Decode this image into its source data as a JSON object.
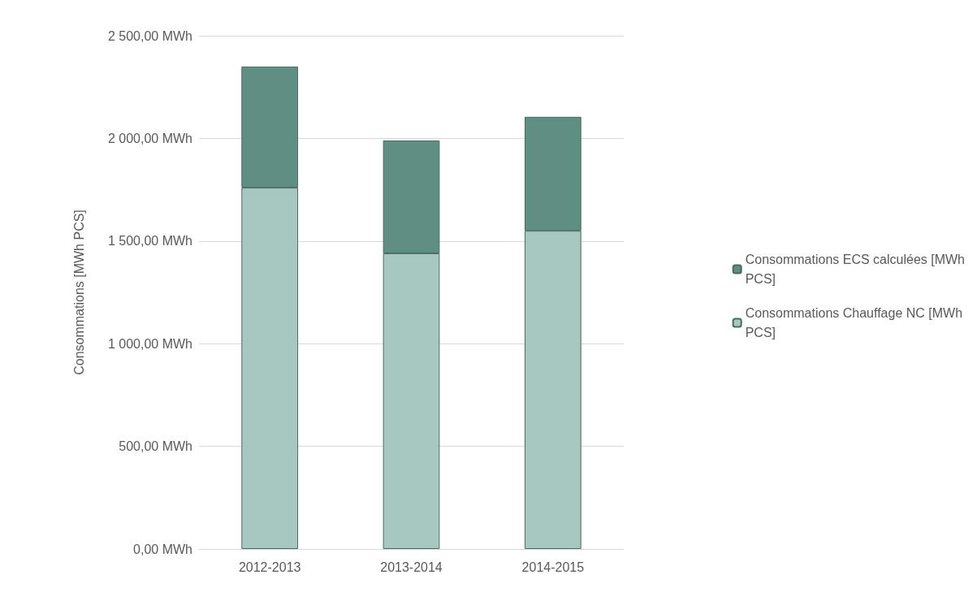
{
  "chart_data": {
    "type": "bar",
    "stacked": true,
    "ylabel": "Consommations [MWh PCS]",
    "categories": [
      "2012-2013",
      "2013-2014",
      "2014-2015"
    ],
    "series": [
      {
        "name": "Consommations Chauffage NC [MWh PCS]",
        "color": "#a6c8c0",
        "values": [
          1760,
          1440,
          1550
        ]
      },
      {
        "name": "Consommations ECS calculées [MWh PCS]",
        "color": "#5f8f83",
        "values": [
          590,
          550,
          555
        ]
      }
    ],
    "ylim": [
      0,
      2500
    ],
    "yticks": [
      {
        "value": 0,
        "label": "0,00 MWh"
      },
      {
        "value": 500,
        "label": "500,00 MWh"
      },
      {
        "value": 1000,
        "label": "1 000,00 MWh"
      },
      {
        "value": 1500,
        "label": "1 500,00 MWh"
      },
      {
        "value": 2000,
        "label": "2 000,00 MWh"
      },
      {
        "value": 2500,
        "label": "2 500,00 MWh"
      }
    ],
    "grid": true,
    "legend": "right"
  }
}
